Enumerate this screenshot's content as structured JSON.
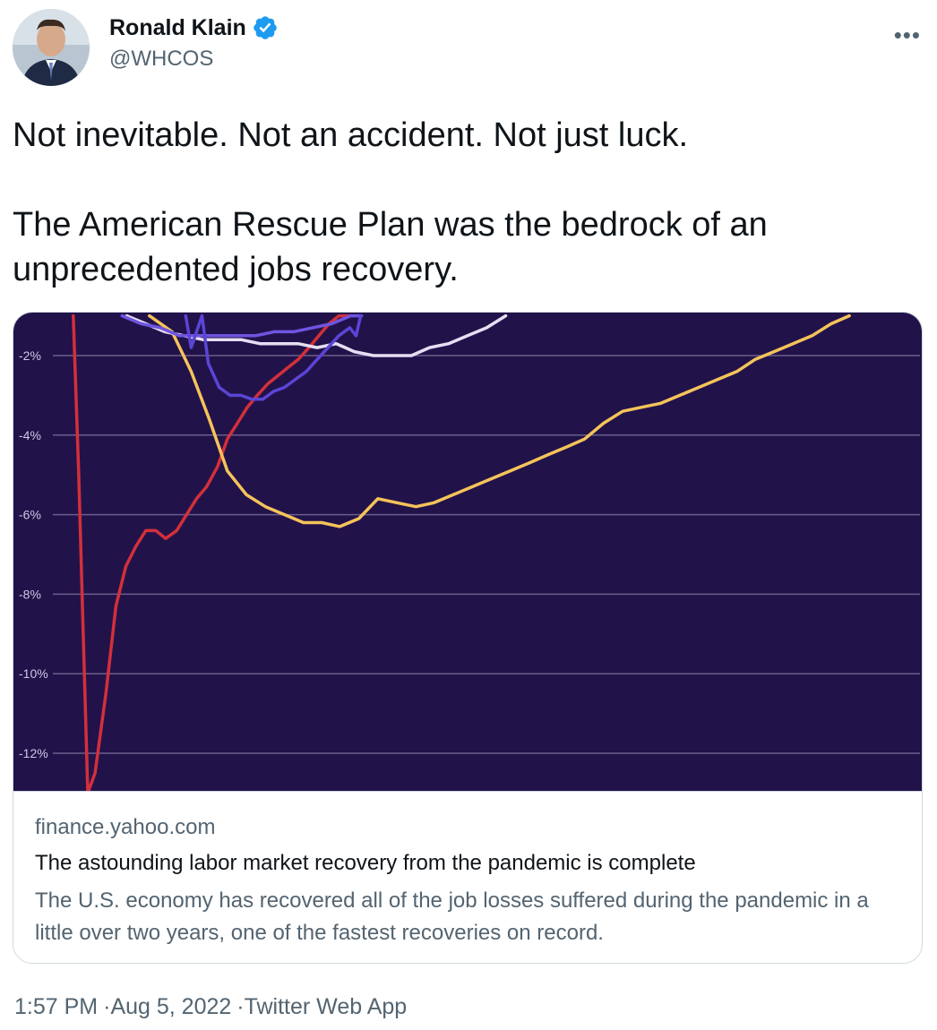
{
  "author": {
    "name": "Ronald Klain",
    "handle": "@WHCOS",
    "verified": true,
    "avatar_icon": "person-avatar"
  },
  "menu": {
    "more_label": "•••"
  },
  "tweet": {
    "line1": "Not inevitable.  Not an accident.  Not just luck.",
    "line2": "The American Rescue Plan was the bedrock of an unprecedented jobs recovery."
  },
  "card": {
    "domain": "finance.yahoo.com",
    "title": "The astounding labor market recovery from the pandemic is complete",
    "description": "The U.S. economy has recovered all of the job losses suffered during the pandemic in a little over two years, one of the fastest recoveries on record."
  },
  "footer": {
    "time": "1:57 PM",
    "date": "Aug 5, 2022",
    "client": "Twitter Web App"
  },
  "colors": {
    "chart_bg": "#22124a",
    "gridline": "#6a5f8a",
    "verified": "#1d9bf0",
    "red": "#d2303a",
    "yellow": "#f4c35a",
    "light": "#e6dff2",
    "purple": "#6e55e0",
    "violet": "#5b45d6"
  },
  "chart_data": {
    "type": "line",
    "ylim": [
      -13.0,
      -1.0
    ],
    "yticks": [
      -2,
      -4,
      -6,
      -8,
      -10,
      -12
    ],
    "ytick_labels": [
      "-2%",
      "-4%",
      "-6%",
      "-8%",
      "-10%",
      "-12%"
    ],
    "xlim": [
      0,
      100
    ],
    "series": [
      {
        "color": "#d2303a",
        "x": [
          6.6,
          7.2,
          7.7,
          8.2,
          9.0,
          10.2,
          11.3,
          12.4,
          13.5,
          14.6,
          15.7,
          16.8,
          18.0,
          19.1,
          20.2,
          21.3,
          22.5,
          23.6,
          24.7,
          25.8,
          26.9,
          28.1,
          29.2,
          30.3,
          31.4,
          32.6,
          33.7,
          34.8,
          35.9,
          37.0
        ],
        "y": [
          -1.0,
          -5.0,
          -9.0,
          -13.0,
          -12.5,
          -10.5,
          -8.3,
          -7.3,
          -6.8,
          -6.4,
          -6.4,
          -6.6,
          -6.4,
          -6.0,
          -5.6,
          -5.3,
          -4.8,
          -4.1,
          -3.7,
          -3.3,
          -3.0,
          -2.7,
          -2.5,
          -2.3,
          -2.1,
          -1.8,
          -1.5,
          -1.2,
          -1.0,
          -1.0
        ]
      },
      {
        "color": "#f4c35a",
        "x": [
          15.0,
          17.5,
          19.6,
          21.6,
          23.6,
          25.7,
          27.8,
          29.9,
          32.0,
          34.0,
          36.0,
          38.1,
          40.2,
          42.3,
          44.4,
          46.4,
          48.5,
          50.6,
          52.7,
          54.8,
          56.9,
          58.9,
          61.0,
          63.0,
          65.1,
          67.2,
          69.3,
          71.4,
          73.5,
          75.6,
          77.7,
          79.8,
          81.8,
          83.9,
          86.0,
          88.1,
          90.2,
          92.2
        ],
        "y": [
          -1.0,
          -1.4,
          -2.4,
          -3.6,
          -4.9,
          -5.5,
          -5.8,
          -6.0,
          -6.2,
          -6.2,
          -6.3,
          -6.1,
          -5.6,
          -5.7,
          -5.8,
          -5.7,
          -5.5,
          -5.3,
          -5.1,
          -4.9,
          -4.7,
          -4.5,
          -4.3,
          -4.1,
          -3.7,
          -3.4,
          -3.3,
          -3.2,
          -3.0,
          -2.8,
          -2.6,
          -2.4,
          -2.1,
          -1.9,
          -1.7,
          -1.5,
          -1.2,
          -1.0
        ]
      },
      {
        "color": "#e6dff2",
        "x": [
          12.5,
          14.6,
          16.7,
          18.8,
          20.9,
          23.0,
          25.1,
          27.2,
          29.3,
          31.4,
          33.5,
          35.6,
          37.6,
          39.7,
          41.8,
          43.9,
          45.9,
          48.0,
          50.1,
          52.2,
          54.3
        ],
        "y": [
          -1.0,
          -1.2,
          -1.4,
          -1.5,
          -1.6,
          -1.6,
          -1.6,
          -1.7,
          -1.7,
          -1.7,
          -1.8,
          -1.7,
          -1.9,
          -2.0,
          -2.0,
          -2.0,
          -1.8,
          -1.7,
          -1.5,
          -1.3,
          -1.0
        ]
      },
      {
        "color": "#6e55e0",
        "x": [
          12.0,
          14.1,
          16.2,
          18.3,
          20.4,
          22.5,
          24.6,
          26.7,
          28.8,
          30.9,
          33.0,
          35.1,
          37.2,
          38.4
        ],
        "y": [
          -1.0,
          -1.2,
          -1.3,
          -1.5,
          -1.5,
          -1.5,
          -1.5,
          -1.5,
          -1.4,
          -1.4,
          -1.3,
          -1.2,
          -1.0,
          -1.0
        ]
      },
      {
        "color": "#5b45d6",
        "x": [
          19.0,
          19.6,
          20.2,
          20.8,
          21.5,
          22.7,
          23.9,
          25.1,
          26.3,
          27.5,
          28.7,
          29.9,
          31.1,
          32.3,
          33.5,
          34.7,
          35.9,
          37.1,
          37.8,
          38.3
        ],
        "y": [
          -1.0,
          -1.8,
          -1.4,
          -1.0,
          -2.2,
          -2.8,
          -3.0,
          -3.0,
          -3.1,
          -3.1,
          -2.9,
          -2.8,
          -2.6,
          -2.4,
          -2.1,
          -1.8,
          -1.5,
          -1.3,
          -1.5,
          -1.0
        ]
      }
    ]
  }
}
